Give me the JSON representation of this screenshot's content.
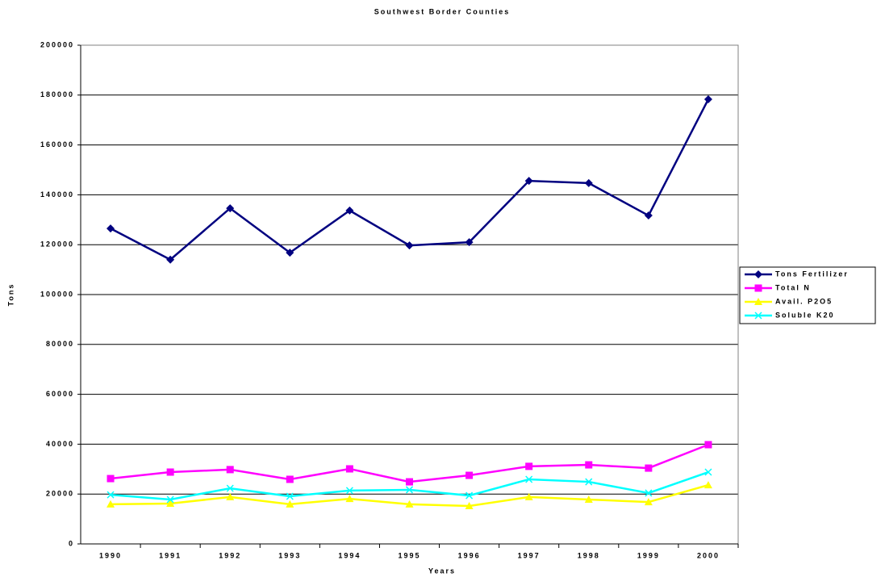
{
  "chart_data": {
    "type": "line",
    "title": "Southwest Border Counties",
    "x_label": "Years",
    "y_label": "Tons",
    "categories": [
      "1990",
      "1991",
      "1992",
      "1993",
      "1994",
      "1995",
      "1996",
      "1997",
      "1998",
      "1999",
      "2000"
    ],
    "ylim": [
      0,
      200000
    ],
    "yticks": [
      0,
      20000,
      40000,
      60000,
      80000,
      100000,
      120000,
      140000,
      160000,
      180000,
      200000
    ],
    "grid": true,
    "legend": "right",
    "series": [
      {
        "name": "Tons Fertilizer",
        "color": "#000080",
        "marker": "diamond",
        "values": [
          126500,
          114000,
          134600,
          116800,
          133700,
          119700,
          121000,
          145600,
          144700,
          131700,
          178300
        ]
      },
      {
        "name": "Total N",
        "color": "#ff00ff",
        "marker": "square",
        "values": [
          26200,
          28800,
          29800,
          25900,
          30100,
          24900,
          27500,
          31100,
          31700,
          30400,
          39800
        ]
      },
      {
        "name": "Avail. P2O5",
        "color": "#ffff00",
        "marker": "triangle",
        "values": [
          15900,
          16200,
          18800,
          15900,
          18100,
          15900,
          15200,
          18800,
          17800,
          16800,
          23600
        ]
      },
      {
        "name": "Soluble K20",
        "color": "#00ffff",
        "marker": "x",
        "values": [
          19700,
          17800,
          22300,
          19100,
          21400,
          21700,
          19400,
          25900,
          24900,
          20400,
          28800
        ]
      }
    ]
  }
}
